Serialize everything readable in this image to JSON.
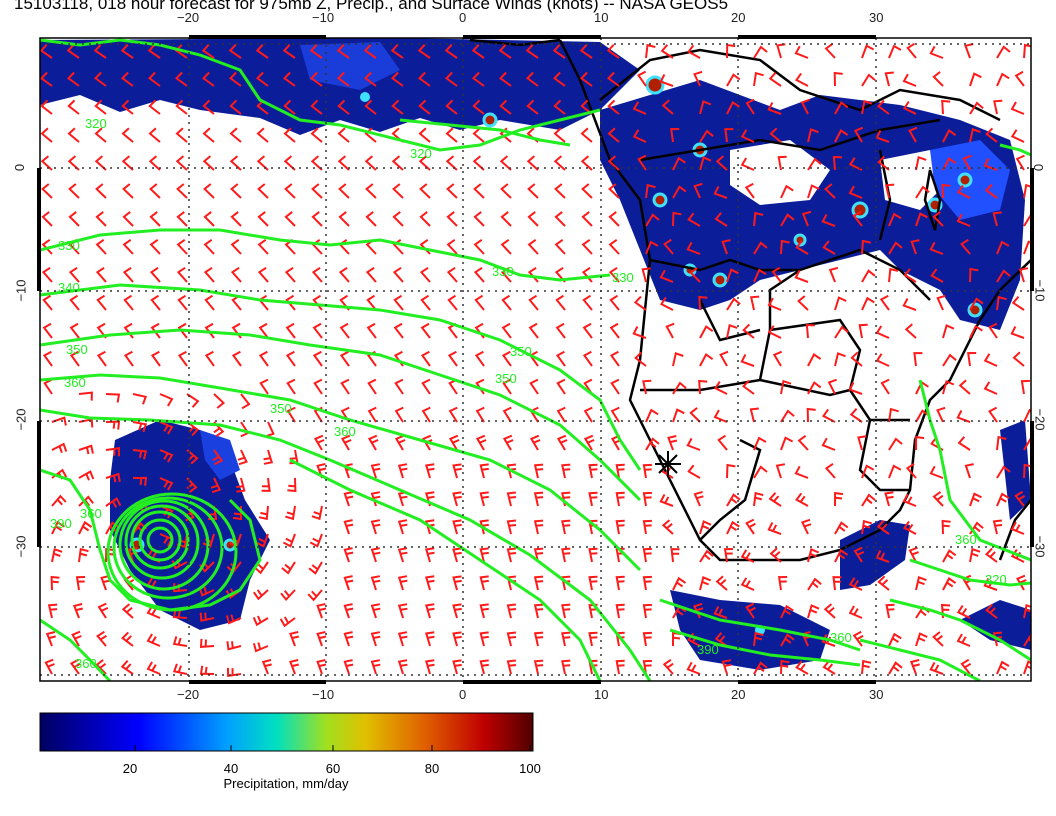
{
  "title": "15103118, 018 hour forecast for 975mb Z, Precip., and Surface Winds (knots) -- NASA GEOS5",
  "map": {
    "lon_ticks": [
      "−20",
      "−10",
      "0",
      "10",
      "20",
      "30"
    ],
    "lat_ticks": [
      "0",
      "−10",
      "−20",
      "−30"
    ],
    "contour_labels": [
      "320",
      "320",
      "330",
      "330",
      "340",
      "350",
      "360",
      "350",
      "350",
      "350",
      "360",
      "390",
      "360",
      "320",
      "360",
      "390",
      "360",
      "360",
      "330"
    ],
    "colors": {
      "precip_low": "#0a1a8c",
      "contour": "#22ee22",
      "wind_barb": "#ff1a1a",
      "coast": "#000000",
      "grid": "#333333"
    },
    "marker": "asterisk"
  },
  "colorbar": {
    "ticks": [
      "20",
      "40",
      "60",
      "80",
      "100"
    ],
    "label": "Precipitation, mm/day",
    "range": [
      0,
      100
    ],
    "colors": [
      "#000080",
      "#0000ff",
      "#00a0ff",
      "#00e0c0",
      "#80e040",
      "#d0d000",
      "#e08000",
      "#d00000",
      "#600000"
    ]
  }
}
